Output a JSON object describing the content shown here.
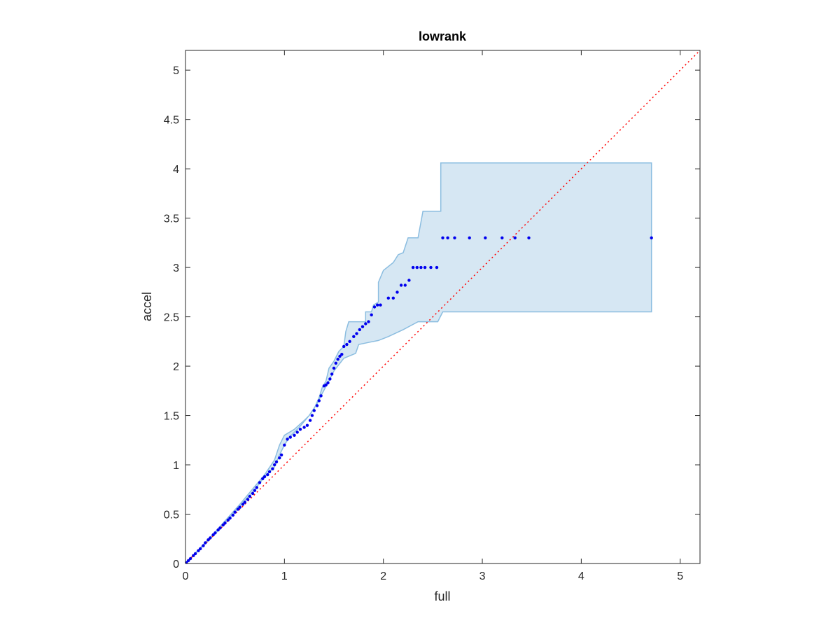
{
  "chart_data": {
    "type": "scatter",
    "title": "lowrank",
    "xlabel": "full",
    "ylabel": "accel",
    "xlim": [
      0,
      5.2
    ],
    "ylim": [
      0,
      5.2
    ],
    "xticks": [
      0,
      1,
      2,
      3,
      4,
      5
    ],
    "yticks": [
      0,
      0.5,
      1,
      1.5,
      2,
      2.5,
      3,
      3.5,
      4,
      4.5,
      5
    ],
    "xtick_labels": [
      "0",
      "1",
      "2",
      "3",
      "4",
      "5"
    ],
    "ytick_labels": [
      "0",
      "0.5",
      "1",
      "1.5",
      "2",
      "2.5",
      "3",
      "3.5",
      "4",
      "4.5",
      "5"
    ],
    "grid": false,
    "colors": {
      "points": "#0000ee",
      "band_fill": "#d6e7f3",
      "band_edge": "#8bbde0",
      "reference": "#ff0000",
      "axes": "#262626"
    },
    "reference_line": {
      "style": "dotted",
      "x": [
        0,
        5.2
      ],
      "y": [
        0,
        5.2
      ]
    },
    "band": {
      "upper": [
        [
          0,
          0
        ],
        [
          0.3,
          0.32
        ],
        [
          0.55,
          0.6
        ],
        [
          0.7,
          0.78
        ],
        [
          0.8,
          0.9
        ],
        [
          0.9,
          1.05
        ],
        [
          0.95,
          1.2
        ],
        [
          1.0,
          1.3
        ],
        [
          1.1,
          1.36
        ],
        [
          1.2,
          1.45
        ],
        [
          1.25,
          1.5
        ],
        [
          1.3,
          1.57
        ],
        [
          1.35,
          1.68
        ],
        [
          1.38,
          1.78
        ],
        [
          1.42,
          1.85
        ],
        [
          1.45,
          1.98
        ],
        [
          1.5,
          2.05
        ],
        [
          1.55,
          2.15
        ],
        [
          1.6,
          2.2
        ],
        [
          1.62,
          2.35
        ],
        [
          1.65,
          2.45
        ],
        [
          1.82,
          2.45
        ],
        [
          1.82,
          2.55
        ],
        [
          1.88,
          2.55
        ],
        [
          1.9,
          2.62
        ],
        [
          1.95,
          2.65
        ],
        [
          1.95,
          2.85
        ],
        [
          2.0,
          2.97
        ],
        [
          2.1,
          3.05
        ],
        [
          2.15,
          3.13
        ],
        [
          2.2,
          3.15
        ],
        [
          2.25,
          3.3
        ],
        [
          2.35,
          3.3
        ],
        [
          2.4,
          3.57
        ],
        [
          2.58,
          3.57
        ],
        [
          2.58,
          4.06
        ],
        [
          4.71,
          4.06
        ]
      ],
      "lower": [
        [
          4.71,
          2.55
        ],
        [
          2.6,
          2.55
        ],
        [
          2.55,
          2.45
        ],
        [
          2.35,
          2.45
        ],
        [
          2.2,
          2.37
        ],
        [
          2.05,
          2.3
        ],
        [
          1.95,
          2.26
        ],
        [
          1.85,
          2.24
        ],
        [
          1.75,
          2.22
        ],
        [
          1.72,
          2.13
        ],
        [
          1.6,
          2.08
        ],
        [
          1.5,
          1.95
        ],
        [
          1.45,
          1.85
        ],
        [
          1.38,
          1.72
        ],
        [
          1.33,
          1.62
        ],
        [
          1.25,
          1.5
        ],
        [
          1.15,
          1.38
        ],
        [
          1.05,
          1.28
        ],
        [
          1.0,
          1.2
        ],
        [
          0.95,
          1.1
        ],
        [
          0.9,
          0.98
        ],
        [
          0.8,
          0.88
        ],
        [
          0.7,
          0.75
        ],
        [
          0.55,
          0.58
        ],
        [
          0.3,
          0.3
        ],
        [
          0,
          0
        ]
      ]
    },
    "series": [
      {
        "x": [
          0.01,
          0.03,
          0.05,
          0.08,
          0.1,
          0.13,
          0.15,
          0.18,
          0.2,
          0.23,
          0.25,
          0.28,
          0.3,
          0.33,
          0.35,
          0.38,
          0.4,
          0.43,
          0.45,
          0.48,
          0.5,
          0.53,
          0.55,
          0.58,
          0.6,
          0.63,
          0.65,
          0.68,
          0.7,
          0.72,
          0.75,
          0.78,
          0.8,
          0.83,
          0.85,
          0.88,
          0.9,
          0.92,
          0.95,
          0.97,
          1.0,
          1.03,
          1.06,
          1.1,
          1.13,
          1.16,
          1.2,
          1.23,
          1.26,
          1.28,
          1.3,
          1.33,
          1.35,
          1.37,
          1.4,
          1.42,
          1.44,
          1.46,
          1.48,
          1.5,
          1.52,
          1.54,
          1.56,
          1.58,
          1.6,
          1.63,
          1.66,
          1.7,
          1.73,
          1.76,
          1.79,
          1.82,
          1.85,
          1.88,
          1.91,
          1.94,
          1.97,
          2.05,
          2.1,
          2.14,
          2.18,
          2.22,
          2.26,
          2.3,
          2.34,
          2.38,
          2.42,
          2.48,
          2.54,
          2.6,
          2.65,
          2.72,
          2.87,
          3.03,
          3.2,
          3.33,
          3.47,
          4.71
        ],
        "y": [
          0.01,
          0.03,
          0.05,
          0.08,
          0.1,
          0.13,
          0.15,
          0.18,
          0.21,
          0.24,
          0.26,
          0.29,
          0.31,
          0.34,
          0.36,
          0.39,
          0.41,
          0.44,
          0.46,
          0.49,
          0.52,
          0.55,
          0.57,
          0.6,
          0.62,
          0.65,
          0.68,
          0.71,
          0.74,
          0.77,
          0.82,
          0.86,
          0.88,
          0.9,
          0.93,
          0.96,
          1.0,
          1.03,
          1.07,
          1.1,
          1.2,
          1.26,
          1.28,
          1.3,
          1.33,
          1.36,
          1.38,
          1.4,
          1.45,
          1.5,
          1.55,
          1.6,
          1.65,
          1.7,
          1.8,
          1.81,
          1.83,
          1.87,
          1.92,
          1.98,
          2.03,
          2.07,
          2.1,
          2.12,
          2.2,
          2.22,
          2.25,
          2.3,
          2.33,
          2.37,
          2.4,
          2.43,
          2.45,
          2.52,
          2.6,
          2.62,
          2.62,
          2.69,
          2.69,
          2.75,
          2.82,
          2.82,
          2.87,
          3.0,
          3.0,
          3.0,
          3.0,
          3.0,
          3.0,
          3.3,
          3.3,
          3.3,
          3.3,
          3.3,
          3.3,
          3.3,
          3.3,
          3.3
        ]
      }
    ]
  }
}
